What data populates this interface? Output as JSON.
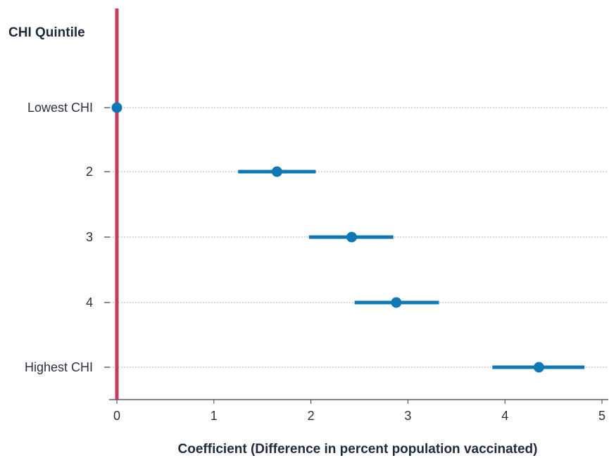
{
  "chart_data": {
    "type": "scatter",
    "subtype": "coefficient-plot",
    "y_title": "CHI Quintile",
    "xlabel": "Coefficient (Difference in percent population vaccinated)",
    "xlim": [
      0,
      5
    ],
    "xticks": [
      "0",
      "1",
      "2",
      "3",
      "4",
      "5"
    ],
    "grid": "horizontal-dotted",
    "reference_line_x": 0,
    "categories": [
      "Lowest CHI",
      "2",
      "3",
      "4",
      "Highest CHI"
    ],
    "series": [
      {
        "estimates": [
          0,
          1.65,
          2.42,
          2.88,
          4.35
        ],
        "ci_low": [
          0,
          1.25,
          1.98,
          2.45,
          3.87
        ],
        "ci_high": [
          0,
          2.05,
          2.85,
          3.32,
          4.82
        ]
      }
    ],
    "colors": {
      "marker": "#0e78b4",
      "reference_line": "#c43d5a",
      "axis": "#3a3f4a"
    }
  }
}
